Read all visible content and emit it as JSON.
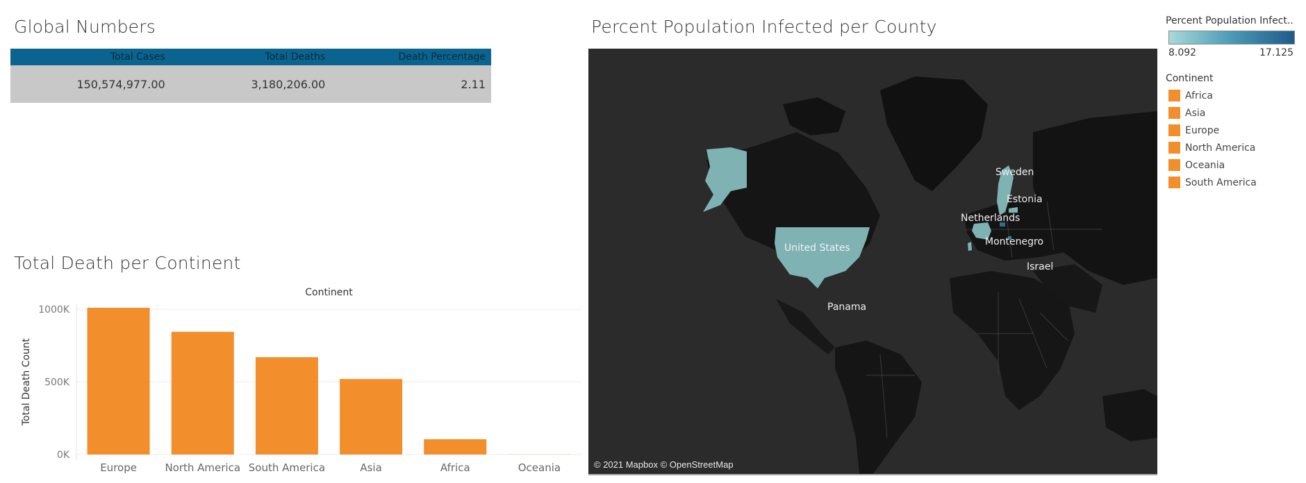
{
  "global": {
    "title": "Global Numbers",
    "headers": [
      "Total Cases",
      "Total Deaths",
      "Death Percentage"
    ],
    "values": [
      "150,574,977.00",
      "3,180,206.00",
      "2.11"
    ]
  },
  "deaths_section": {
    "title": "Total Death per Continent"
  },
  "map_section": {
    "title": "Percent Population Infected per County",
    "credit": "© 2021 Mapbox © OpenStreetMap",
    "labels": [
      "Sweden",
      "Estonia",
      "Netherlands",
      "United States",
      "Montenegro",
      "Israel",
      "Panama"
    ]
  },
  "legend_color": {
    "title": "Percent Population Infect..",
    "min": "8.092",
    "max": "17.125"
  },
  "legend_continent": {
    "title": "Continent",
    "items": [
      "Africa",
      "Asia",
      "Europe",
      "North America",
      "Oceania",
      "South America"
    ]
  },
  "colors": {
    "bar": "#f28e2b",
    "header": "#0b6390",
    "map_bg": "#2b2b2b",
    "land": "#141414",
    "highlight": "#7fb3b3"
  },
  "chart_data": [
    {
      "type": "bar",
      "title": "Continent",
      "categories": [
        "Europe",
        "North America",
        "South America",
        "Asia",
        "Africa",
        "Oceania"
      ],
      "values": [
        1010000,
        845000,
        670000,
        520000,
        105000,
        1000
      ],
      "xlabel": "",
      "ylabel": "Total Death Count",
      "yticks": [
        "0K",
        "500K",
        "1000K"
      ],
      "ylim": [
        0,
        1000000
      ],
      "grid": true
    }
  ]
}
